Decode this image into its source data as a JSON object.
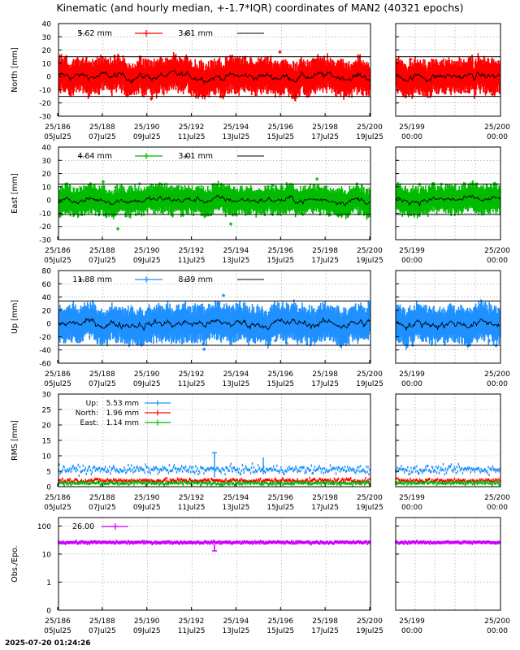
{
  "title": "Kinematic (and hourly median, +-1.7*IQR) coordinates of MAN2 (40321 epochs)",
  "footer_timestamp": "2025-07-20 01:24:26",
  "colors": {
    "north": "#ff0000",
    "east": "#00bb00",
    "up": "#1e90ff",
    "obs": "#cc00ff",
    "median": "#000000"
  },
  "x_ticks_main": [
    {
      "top": "25/186",
      "bottom": "05Jul25"
    },
    {
      "top": "25/188",
      "bottom": "07Jul25"
    },
    {
      "top": "25/190",
      "bottom": "09Jul25"
    },
    {
      "top": "25/192",
      "bottom": "11Jul25"
    },
    {
      "top": "25/194",
      "bottom": "13Jul25"
    },
    {
      "top": "25/196",
      "bottom": "15Jul25"
    },
    {
      "top": "25/198",
      "bottom": "17Jul25"
    },
    {
      "top": "25/200",
      "bottom": "19Jul25"
    }
  ],
  "x_ticks_zoom": [
    {
      "top": "25/199",
      "bottom": "00:00"
    },
    {
      "top": "25/200",
      "bottom": "00:00"
    }
  ],
  "chart_data": [
    {
      "type": "scatter",
      "ylabel": "North [mm]",
      "ylim": [
        -30,
        40
      ],
      "yticks": [
        "-30",
        "-20",
        "-10",
        "0",
        "10",
        "20",
        "30",
        "40"
      ],
      "limit_lines": [
        15,
        -15
      ],
      "series": [
        {
          "name": "5.62 mm",
          "role": "kinematic",
          "color": "#ff0000",
          "spread": 5.62
        },
        {
          "name": "3.81 mm",
          "role": "hourly-median",
          "color": "#000000",
          "spread": 3.81
        }
      ]
    },
    {
      "type": "scatter",
      "ylabel": "East [mm]",
      "ylim": [
        -30,
        40
      ],
      "yticks": [
        "-30",
        "-20",
        "-10",
        "0",
        "10",
        "20",
        "30",
        "40"
      ],
      "limit_lines": [
        12,
        -11
      ],
      "series": [
        {
          "name": "4.64 mm",
          "role": "kinematic",
          "color": "#00bb00",
          "spread": 4.64
        },
        {
          "name": "3.01 mm",
          "role": "hourly-median",
          "color": "#000000",
          "spread": 3.01
        }
      ]
    },
    {
      "type": "scatter",
      "ylabel": "Up [mm]",
      "ylim": [
        -60,
        80
      ],
      "yticks": [
        "-60",
        "-40",
        "-20",
        "0",
        "20",
        "40",
        "60",
        "80"
      ],
      "limit_lines": [
        34,
        -33
      ],
      "series": [
        {
          "name": "11.88 mm",
          "role": "kinematic",
          "color": "#1e90ff",
          "spread": 11.88
        },
        {
          "name": "8.39 mm",
          "role": "hourly-median",
          "color": "#000000",
          "spread": 8.39
        }
      ]
    },
    {
      "type": "scatter",
      "ylabel": "RMS [mm]",
      "ylim": [
        0,
        30
      ],
      "yticks": [
        "0",
        "5",
        "10",
        "15",
        "20",
        "25",
        "30"
      ],
      "series": [
        {
          "label": "Up:",
          "value": "5.53 mm",
          "color": "#1e90ff",
          "level": 5.53
        },
        {
          "label": "North:",
          "value": "1.96 mm",
          "color": "#ff0000",
          "level": 1.96
        },
        {
          "label": "East:",
          "value": "1.14 mm",
          "color": "#00bb00",
          "level": 1.14
        }
      ]
    },
    {
      "type": "scatter",
      "ylabel": "Obs./Epo.",
      "log_scale": true,
      "ylim": [
        0.1,
        200
      ],
      "yticks": [
        "0",
        "1",
        "10",
        "100"
      ],
      "series": [
        {
          "name": "26.00",
          "color": "#cc00ff",
          "level": 26.0
        }
      ]
    }
  ]
}
